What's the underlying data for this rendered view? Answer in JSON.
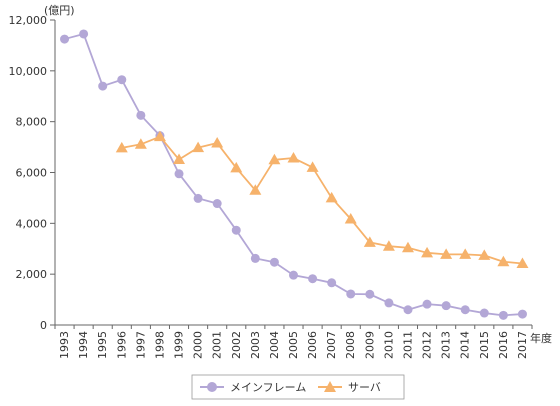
{
  "chart_data": {
    "type": "line",
    "y_unit": "(億円)",
    "x_unit": "年度",
    "x": [
      "1993",
      "1994",
      "1995",
      "1996",
      "1997",
      "1998",
      "1999",
      "2000",
      "2001",
      "2002",
      "2003",
      "2004",
      "2005",
      "2006",
      "2007",
      "2008",
      "2009",
      "2010",
      "2011",
      "2012",
      "2013",
      "2014",
      "2015",
      "2016",
      "2017"
    ],
    "ylim": [
      0,
      12000
    ],
    "y_ticks": [
      "0",
      "2,000",
      "4,000",
      "6,000",
      "8,000",
      "10,000",
      "12,000"
    ],
    "grid": false,
    "legend_position": "bottom",
    "series": [
      {
        "name": "メインフレーム",
        "color": "#b3a7d6",
        "marker": "circle",
        "values": [
          11250,
          11450,
          9400,
          9650,
          8250,
          7450,
          5950,
          4980,
          4780,
          3730,
          2620,
          2470,
          1960,
          1820,
          1660,
          1220,
          1210,
          870,
          600,
          820,
          760,
          600,
          470,
          380,
          430
        ]
      },
      {
        "name": "サーバ",
        "color": "#f6b26b",
        "marker": "triangle",
        "values": [
          null,
          null,
          null,
          6970,
          7110,
          7410,
          6510,
          6980,
          7160,
          6180,
          5300,
          6500,
          6570,
          6200,
          5000,
          4170,
          3250,
          3100,
          3040,
          2840,
          2780,
          2780,
          2740,
          2490,
          2420
        ]
      }
    ]
  }
}
